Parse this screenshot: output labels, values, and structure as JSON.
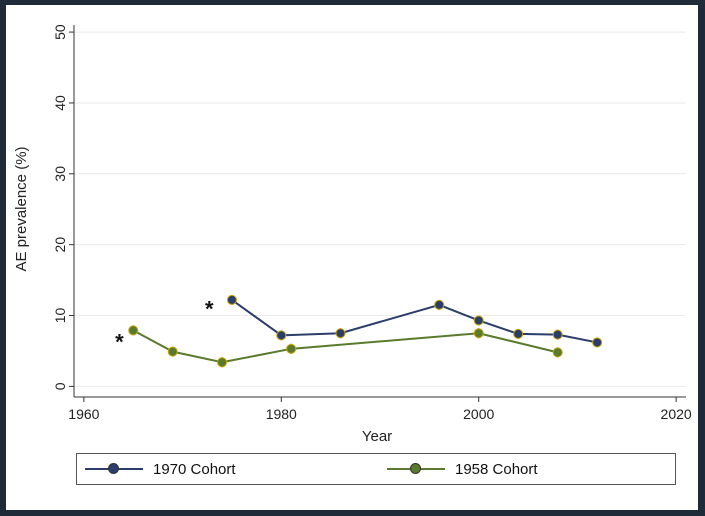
{
  "chart_data": {
    "type": "line",
    "title": "",
    "xlabel": "Year",
    "ylabel": "AE prevalence (%)",
    "xlim": [
      1959,
      2021
    ],
    "ylim": [
      -1.5,
      51
    ],
    "xticks": [
      1960,
      1980,
      2000,
      2020
    ],
    "yticks": [
      0,
      10,
      20,
      30,
      40,
      50
    ],
    "grid": true,
    "legend_position": "bottom",
    "series": [
      {
        "name": "1970 Cohort",
        "color": "#2b3d6b",
        "points": [
          {
            "x": 1975,
            "y": 12.2
          },
          {
            "x": 1980,
            "y": 7.2
          },
          {
            "x": 1986,
            "y": 7.5
          },
          {
            "x": 1996,
            "y": 11.5
          },
          {
            "x": 2000,
            "y": 9.3
          },
          {
            "x": 2004,
            "y": 7.4
          },
          {
            "x": 2008,
            "y": 7.3
          },
          {
            "x": 2012,
            "y": 6.2
          }
        ]
      },
      {
        "name": "1958 Cohort",
        "color": "#5a7a2e",
        "points": [
          {
            "x": 1965,
            "y": 7.9
          },
          {
            "x": 1969,
            "y": 4.9
          },
          {
            "x": 1974,
            "y": 3.4
          },
          {
            "x": 1981,
            "y": 5.3
          },
          {
            "x": 2000,
            "y": 7.5
          },
          {
            "x": 2008,
            "y": 4.8
          }
        ]
      }
    ],
    "annotations": [
      {
        "text": "*",
        "x": 1972.7,
        "y": 11.0
      },
      {
        "text": "*",
        "x": 1963.6,
        "y": 6.3
      }
    ]
  },
  "legend": {
    "items": [
      {
        "label": "1970 Cohort",
        "color": "#2b3d6b"
      },
      {
        "label": "1958 Cohort",
        "color": "#5a7a2e"
      }
    ]
  }
}
